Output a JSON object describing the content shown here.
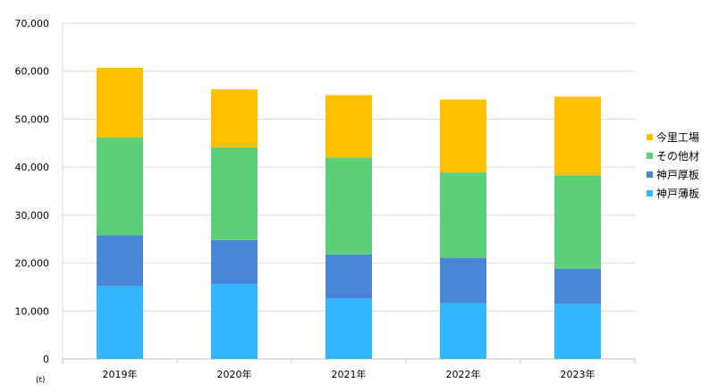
{
  "chart_data": {
    "type": "bar",
    "stacked": true,
    "categories": [
      "2019年",
      "2020年",
      "2021年",
      "2022年",
      "2023年"
    ],
    "series": [
      {
        "name": "神戸薄板",
        "color": "#33b5ff",
        "values": [
          15200,
          15600,
          12600,
          11600,
          11500
        ]
      },
      {
        "name": "神戸厚板",
        "color": "#4a86d8",
        "values": [
          10600,
          9200,
          9200,
          9500,
          7300
        ]
      },
      {
        "name": "その他材",
        "color": "#5ccf78",
        "values": [
          20400,
          19300,
          20200,
          17800,
          19500
        ]
      },
      {
        "name": "今里工場",
        "color": "#ffc000",
        "values": [
          14500,
          12100,
          13000,
          15200,
          16400
        ]
      }
    ],
    "ylim": [
      0,
      70000
    ],
    "yticks": [
      0,
      10000,
      20000,
      30000,
      40000,
      50000,
      60000,
      70000
    ],
    "ytick_labels": [
      "0",
      "10,000",
      "20,000",
      "30,000",
      "40,000",
      "50,000",
      "60,000",
      "70,000"
    ],
    "unit_label": "(t)",
    "grid": true,
    "legend_position": "right",
    "legend_order": [
      "今里工場",
      "その他材",
      "神戸厚板",
      "神戸薄板"
    ]
  }
}
